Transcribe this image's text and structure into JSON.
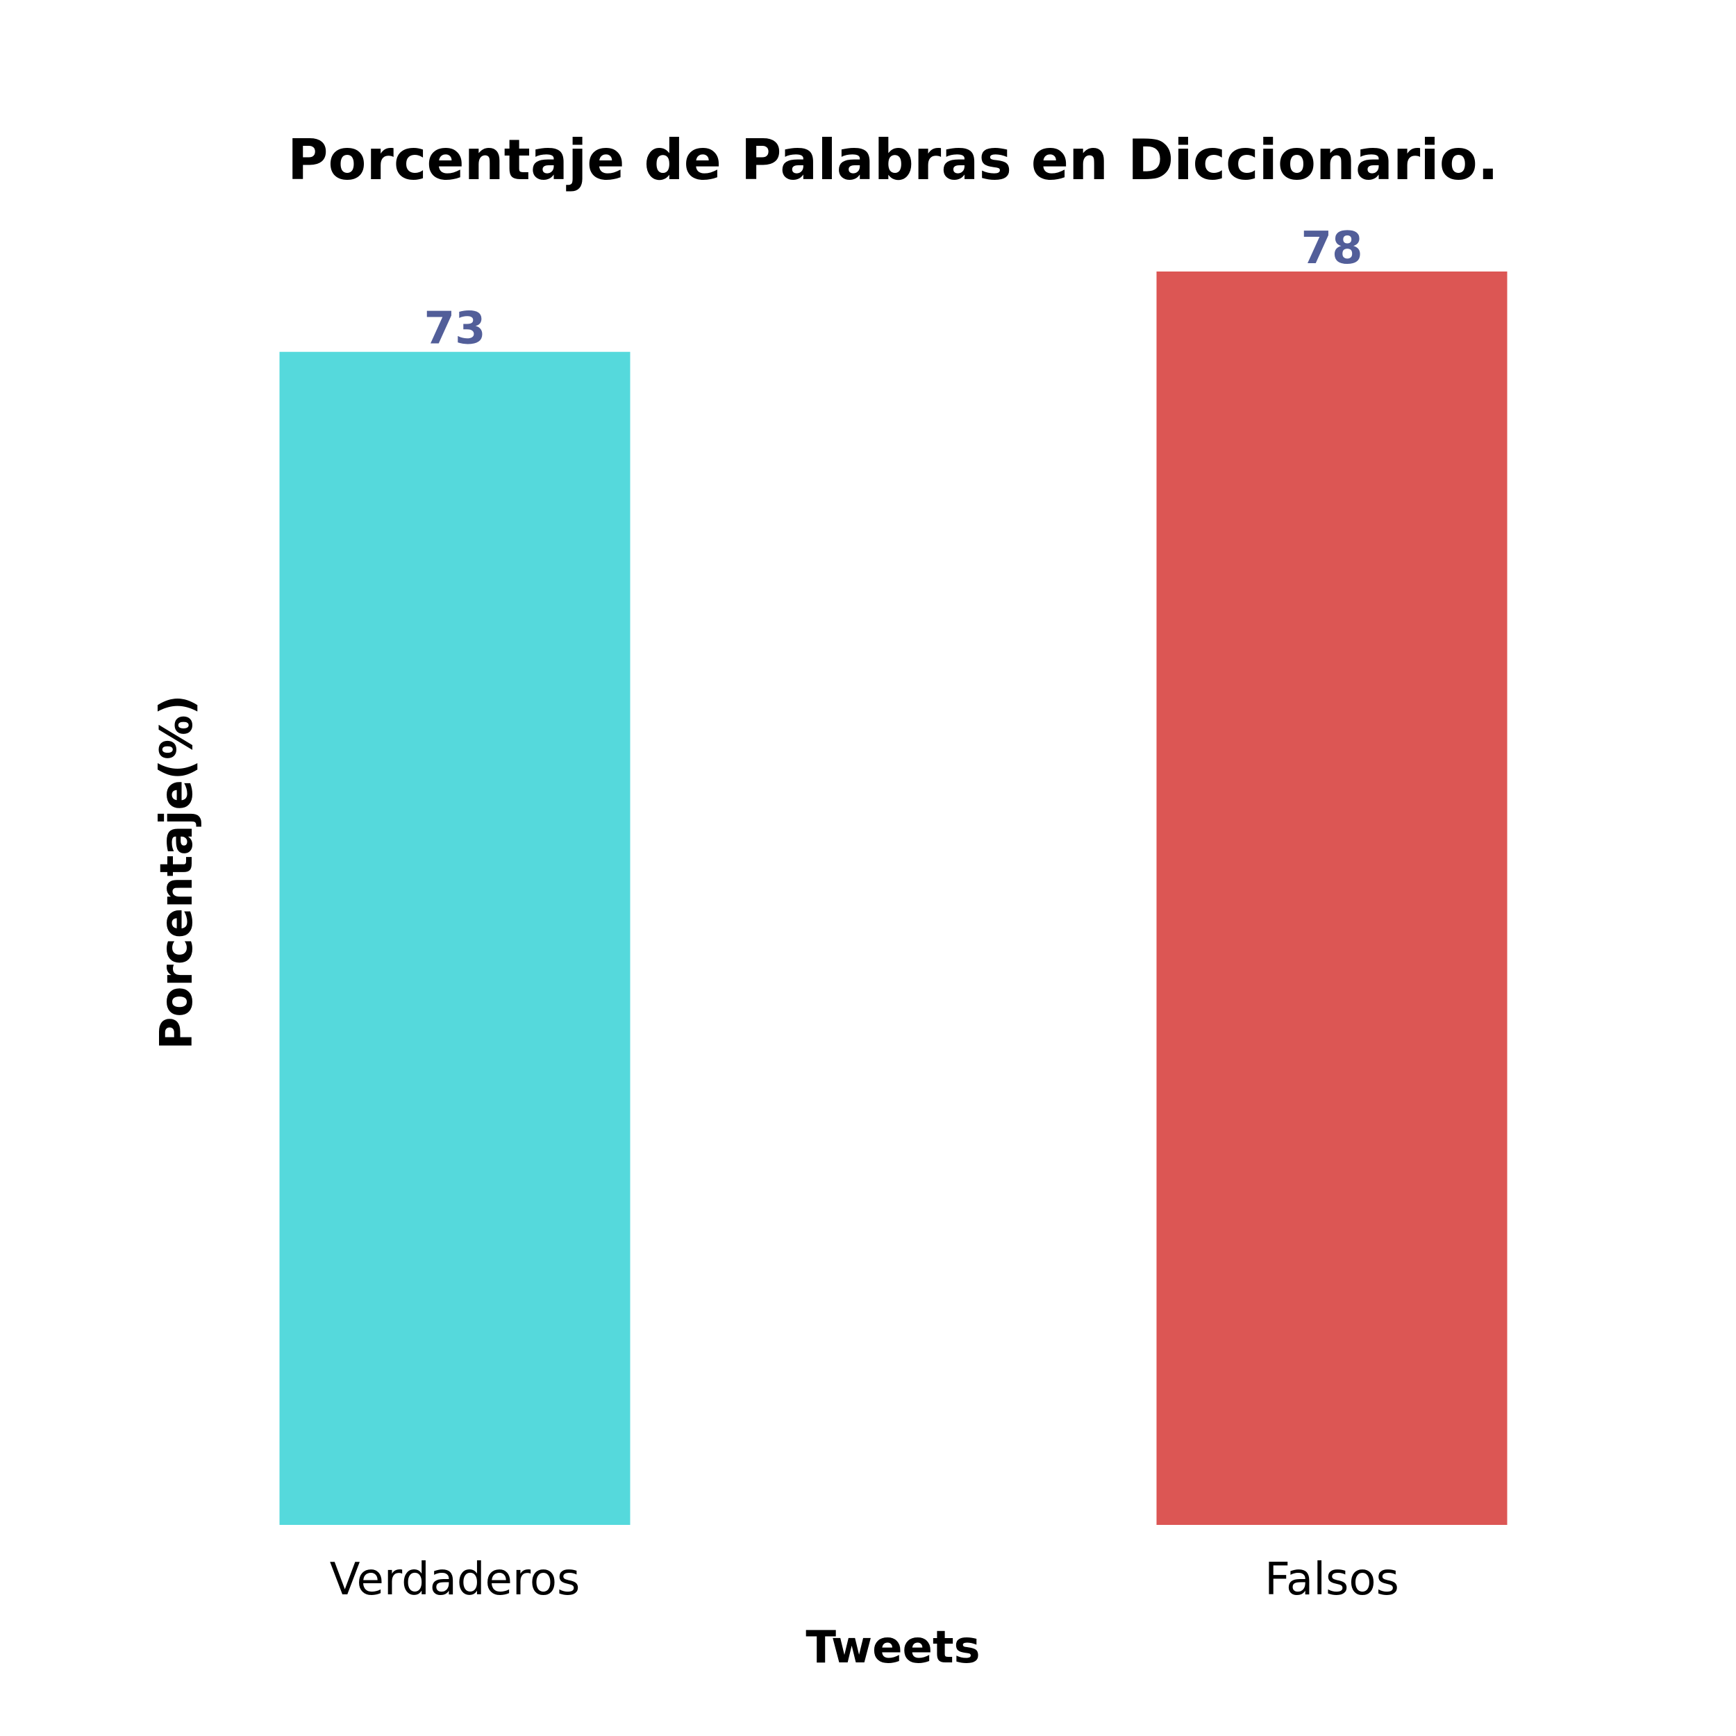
{
  "chart_data": {
    "type": "bar",
    "title": "Porcentaje de Palabras en Diccionario.",
    "xlabel": "Tweets",
    "ylabel": "Porcentaje(%)",
    "categories": [
      "Verdaderos",
      "Falsos"
    ],
    "values": [
      73,
      78
    ],
    "data_labels": [
      "73",
      "78"
    ],
    "colors": [
      "#55d9dc",
      "#dc5654"
    ],
    "label_color": "#525e99",
    "ylim": [
      0,
      78
    ],
    "grid": false,
    "legend": "none"
  }
}
